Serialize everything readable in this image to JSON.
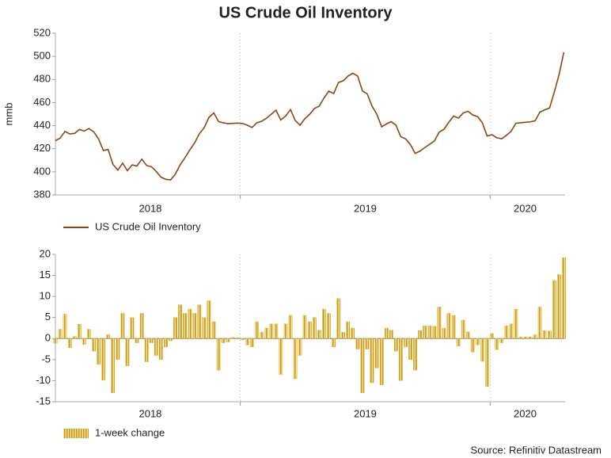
{
  "source": "Source: Refinitiv Datastream",
  "chart_data": [
    {
      "type": "line",
      "title": "US Crude Oil Inventory",
      "ylabel": "mmb",
      "x": [
        2018.26,
        2018.279,
        2018.298,
        2018.318,
        2018.337,
        2018.356,
        2018.375,
        2018.394,
        2018.414,
        2018.433,
        2018.452,
        2018.471,
        2018.49,
        2018.51,
        2018.529,
        2018.548,
        2018.567,
        2018.586,
        2018.606,
        2018.625,
        2018.644,
        2018.663,
        2018.682,
        2018.702,
        2018.721,
        2018.74,
        2018.759,
        2018.778,
        2018.798,
        2018.817,
        2018.836,
        2018.855,
        2018.874,
        2018.894,
        2018.913,
        2018.932,
        2018.951,
        2018.97,
        2018.99,
        2019.009,
        2019.028,
        2019.047,
        2019.066,
        2019.086,
        2019.105,
        2019.124,
        2019.143,
        2019.162,
        2019.182,
        2019.201,
        2019.22,
        2019.239,
        2019.258,
        2019.278,
        2019.297,
        2019.316,
        2019.335,
        2019.354,
        2019.374,
        2019.393,
        2019.412,
        2019.431,
        2019.45,
        2019.47,
        2019.489,
        2019.508,
        2019.527,
        2019.546,
        2019.566,
        2019.585,
        2019.604,
        2019.623,
        2019.642,
        2019.662,
        2019.681,
        2019.7,
        2019.719,
        2019.738,
        2019.758,
        2019.777,
        2019.796,
        2019.815,
        2019.834,
        2019.854,
        2019.873,
        2019.892,
        2019.911,
        2019.93,
        2019.95,
        2019.969,
        2019.988,
        2020.007,
        2020.026,
        2020.046,
        2020.065,
        2020.084,
        2020.103,
        2020.122,
        2020.142,
        2020.161,
        2020.18,
        2020.199,
        2020.218,
        2020.238,
        2020.257,
        2020.276,
        2020.295
      ],
      "series": [
        {
          "name": "US Crude Oil Inventory",
          "color": "#8e4514",
          "values": [
            427.0,
            429.2,
            435.0,
            432.8,
            433.3,
            436.7,
            435.3,
            437.5,
            434.5,
            428.4,
            418.5,
            419.4,
            406.5,
            401.5,
            407.5,
            401.0,
            406.0,
            405.0,
            411.0,
            405.5,
            404.5,
            400.5,
            395.5,
            393.5,
            393.0,
            398.0,
            406.0,
            412.0,
            419.0,
            425.0,
            433.0,
            438.0,
            447.0,
            451.0,
            443.5,
            442.5,
            441.7,
            442.0,
            442.2,
            441.9,
            440.4,
            438.4,
            442.4,
            443.9,
            446.4,
            449.9,
            453.4,
            444.9,
            448.4,
            453.9,
            444.4,
            440.4,
            445.9,
            449.9,
            454.9,
            456.9,
            463.9,
            469.9,
            467.9,
            477.4,
            478.9,
            482.9,
            485.4,
            482.9,
            470.0,
            467.5,
            457.0,
            450.0,
            439.0,
            441.5,
            443.5,
            440.5,
            430.5,
            428.5,
            423.5,
            416.0,
            417.9,
            420.9,
            423.9,
            426.8,
            434.3,
            436.8,
            442.8,
            448.3,
            446.5,
            450.9,
            452.5,
            449.3,
            447.8,
            442.4,
            431.0,
            432.2,
            429.6,
            428.6,
            431.6,
            435.1,
            442.1,
            442.5,
            442.9,
            443.3,
            444.2,
            451.7,
            453.6,
            455.4,
            469.2,
            484.4,
            503.6
          ]
        }
      ],
      "xlim": [
        2018.26,
        2020.3
      ],
      "ylim": [
        380,
        520
      ],
      "yticks": [
        380,
        400,
        420,
        440,
        460,
        480,
        500,
        520
      ],
      "year_boundaries": [
        2019,
        2020
      ],
      "year_labels": [
        {
          "value": 2018.64,
          "label": "2018"
        },
        {
          "value": 2019.5,
          "label": "2019"
        },
        {
          "value": 2020.14,
          "label": "2020"
        }
      ]
    },
    {
      "type": "bar",
      "x": [
        2018.26,
        2018.279,
        2018.298,
        2018.318,
        2018.337,
        2018.356,
        2018.375,
        2018.394,
        2018.414,
        2018.433,
        2018.452,
        2018.471,
        2018.49,
        2018.51,
        2018.529,
        2018.548,
        2018.567,
        2018.586,
        2018.606,
        2018.625,
        2018.644,
        2018.663,
        2018.682,
        2018.702,
        2018.721,
        2018.74,
        2018.759,
        2018.778,
        2018.798,
        2018.817,
        2018.836,
        2018.855,
        2018.874,
        2018.894,
        2018.913,
        2018.932,
        2018.951,
        2018.97,
        2018.99,
        2019.009,
        2019.028,
        2019.047,
        2019.066,
        2019.086,
        2019.105,
        2019.124,
        2019.143,
        2019.162,
        2019.182,
        2019.201,
        2019.22,
        2019.239,
        2019.258,
        2019.278,
        2019.297,
        2019.316,
        2019.335,
        2019.354,
        2019.374,
        2019.393,
        2019.412,
        2019.431,
        2019.45,
        2019.47,
        2019.489,
        2019.508,
        2019.527,
        2019.546,
        2019.566,
        2019.585,
        2019.604,
        2019.623,
        2019.642,
        2019.662,
        2019.681,
        2019.7,
        2019.719,
        2019.738,
        2019.758,
        2019.777,
        2019.796,
        2019.815,
        2019.834,
        2019.854,
        2019.873,
        2019.892,
        2019.911,
        2019.93,
        2019.95,
        2019.969,
        2019.988,
        2020.007,
        2020.026,
        2020.046,
        2020.065,
        2020.084,
        2020.103,
        2020.122,
        2020.142,
        2020.161,
        2020.18,
        2020.199,
        2020.218,
        2020.238,
        2020.257,
        2020.276,
        2020.295
      ],
      "series": [
        {
          "name": "1-week change",
          "color": "#d9b23c",
          "values": [
            -1.1,
            2.2,
            5.8,
            -2.2,
            0.5,
            3.4,
            -1.4,
            2.2,
            -3.0,
            -6.1,
            -9.9,
            0.9,
            -12.9,
            -5.0,
            6.0,
            -6.5,
            5.0,
            -1.0,
            6.0,
            -5.5,
            -1.0,
            -4.0,
            -5.0,
            -2.0,
            -0.5,
            5.0,
            8.0,
            6.0,
            7.0,
            6.0,
            8.0,
            5.0,
            9.0,
            4.0,
            -7.5,
            -1.0,
            -0.8,
            0.3,
            0.2,
            -0.3,
            -1.5,
            -2.0,
            4.0,
            1.5,
            2.5,
            3.5,
            3.5,
            -8.5,
            3.5,
            5.5,
            -9.5,
            -4.0,
            5.5,
            4.0,
            5.0,
            2.0,
            7.0,
            6.0,
            -2.0,
            9.5,
            1.5,
            4.0,
            2.5,
            -2.5,
            -12.9,
            -2.5,
            -10.5,
            -7.0,
            -11.0,
            2.5,
            2.0,
            -3.0,
            -10.0,
            -2.0,
            -5.0,
            -7.5,
            1.9,
            3.0,
            3.0,
            2.9,
            7.5,
            2.5,
            6.0,
            5.5,
            -1.8,
            4.4,
            1.6,
            -3.2,
            -1.5,
            -5.4,
            -11.4,
            1.2,
            -2.6,
            -1.0,
            3.0,
            3.5,
            7.0,
            0.4,
            0.4,
            0.4,
            0.9,
            7.5,
            1.9,
            1.8,
            13.8,
            15.2,
            19.2
          ]
        }
      ],
      "xlim": [
        2018.26,
        2020.3
      ],
      "ylim": [
        -15,
        20
      ],
      "yticks": [
        -15,
        -10,
        -5,
        0,
        5,
        10,
        15,
        20
      ],
      "year_boundaries": [
        2019,
        2020
      ],
      "year_labels": [
        {
          "value": 2018.64,
          "label": "2018"
        },
        {
          "value": 2019.5,
          "label": "2019"
        },
        {
          "value": 2020.14,
          "label": "2020"
        }
      ]
    }
  ]
}
